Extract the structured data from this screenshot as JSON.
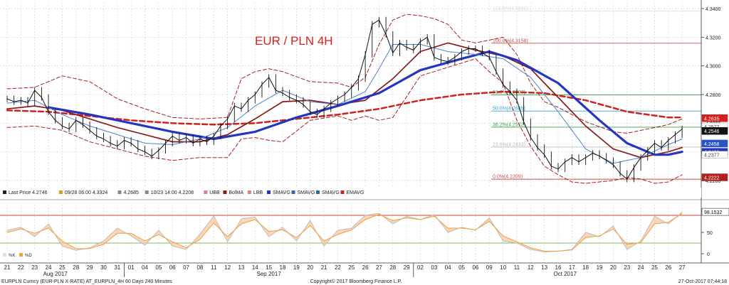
{
  "chart_data": {
    "type": "line",
    "title": "EUR / PLN 4H",
    "price_axis": {
      "ylim": [
        4.216,
        4.344
      ],
      "ticks": [
        4.22,
        4.24,
        4.26,
        4.28,
        4.3,
        4.32,
        4.34
      ],
      "tick_labels": [
        "4.2200",
        "4.2400",
        "4.2600",
        "4.2800",
        "4.3000",
        "4.3200",
        "4.3400"
      ]
    },
    "osc_axis": {
      "ylim": [
        -15,
        115
      ],
      "ticks": [
        0,
        50,
        100
      ],
      "tick_labels": [
        "0",
        "50",
        "100"
      ],
      "levels": [
        {
          "value": 90,
          "color": "#d33c3c"
        },
        {
          "value": 25,
          "color": "#7cbf5a"
        }
      ]
    },
    "dates": [
      "21",
      "22",
      "23",
      "24",
      "25",
      "28",
      "29",
      "30",
      "31",
      "01",
      "04",
      "05",
      "06",
      "07",
      "08",
      "11",
      "12",
      "13",
      "14",
      "15",
      "18",
      "19",
      "20",
      "21",
      "22",
      "25",
      "26",
      "27",
      "28",
      "29",
      "02",
      "03",
      "04",
      "05",
      "06",
      "09",
      "10",
      "11",
      "12",
      "13",
      "16",
      "17",
      "18",
      "19",
      "20",
      "23",
      "24",
      "25",
      "26",
      "27"
    ],
    "months": [
      {
        "label": "Aug 2017",
        "index": 3.5
      },
      {
        "label": "Sep 2017",
        "index": 19
      },
      {
        "label": "Oct 2017",
        "index": 40.5
      }
    ],
    "legend": [
      {
        "label": "Last Price",
        "value": "4.2746",
        "color": "#222222"
      },
      {
        "label": "",
        "value": "09/28 06:00 4.3324",
        "color": "#e29a1c"
      },
      {
        "label": "",
        "value": "4.2685",
        "color": "#888888"
      },
      {
        "label": "",
        "value": "10/23 14:00 4.2208",
        "color": "#888888"
      },
      {
        "label": "UBB",
        "value": "",
        "color": "#e08080"
      },
      {
        "label": "BolMA",
        "value": "",
        "color": "#8b1a1a"
      },
      {
        "label": "LBB",
        "value": "",
        "color": "#e08080"
      },
      {
        "label": "SMAVG",
        "value": "",
        "color": "#2535c0"
      },
      {
        "label": "SMAVG",
        "value": "",
        "color": "#3a5fb0"
      },
      {
        "label": "SMAVG",
        "value": "",
        "color": "#1c6fa8"
      },
      {
        "label": "EMAVG",
        "value": "",
        "color": "#cc2222"
      }
    ],
    "osc_legend": [
      {
        "label": "%K",
        "color": "#e0e0e0"
      },
      {
        "label": "%D",
        "color": "#f0a040"
      }
    ],
    "price_tags": [
      {
        "value": 4.2635,
        "label": "4.2635",
        "bg": "#d42020",
        "fg": "#ffffff"
      },
      {
        "value": 4.2577,
        "label": "4.2577",
        "bg": "#ffffff",
        "fg": "#444444"
      },
      {
        "value": 4.2546,
        "label": "4.2546",
        "bg": "#111111",
        "fg": "#ffffff"
      },
      {
        "value": 4.2458,
        "label": "4.2458",
        "bg": "#2a55c0",
        "fg": "#ffffff"
      },
      {
        "value": 4.24,
        "label": "4.2400",
        "bg": "#2535c0",
        "fg": "#ffffff"
      },
      {
        "value": 4.238,
        "label": "4.2377",
        "bg": "#ffffff",
        "fg": "#444444"
      },
      {
        "value": 4.2222,
        "label": "4.2222",
        "bg": "#b02020",
        "fg": "#ffffff"
      }
    ],
    "osc_tag": {
      "value": 98.1532,
      "label": "98.1532"
    },
    "fib_levels": [
      {
        "label": "123.6%(4.3382)",
        "value": 4.3382,
        "color": "#dddddd"
      },
      {
        "label": "100.0%(4.3158)",
        "value": 4.3158,
        "color": "#c05050"
      },
      {
        "label": "61.8%(4.2797)",
        "value": 4.2797,
        "color": "#3aa04a"
      },
      {
        "label": "50.0%(4.2685)",
        "value": 4.2685,
        "color": "#3aa0d0"
      },
      {
        "label": "38.2%(4.2572)",
        "value": 4.2572,
        "color": "#3aa04a"
      },
      {
        "label": "23.6%(4.2433)",
        "value": 4.2433,
        "color": "#bbbbbb"
      },
      {
        "label": "0.0%(4.2209)",
        "value": 4.2209,
        "color": "#c05050"
      }
    ],
    "series": [
      {
        "name": "Last Price",
        "kind": "price",
        "color": "#111111",
        "x": [
          0,
          0.5,
          1,
          1.5,
          2,
          2.5,
          3,
          3.5,
          4,
          4.5,
          5,
          5.5,
          6,
          6.5,
          7,
          7.5,
          8,
          8.5,
          9,
          9.5,
          10,
          10.5,
          11,
          11.5,
          12,
          12.5,
          13,
          13.5,
          14,
          14.5,
          15,
          15.5,
          16,
          16.5,
          17,
          17.5,
          18,
          18.5,
          19,
          19.5,
          20,
          20.5,
          21,
          21.5,
          22,
          22.5,
          23,
          23.5,
          24,
          24.5,
          25,
          25.5,
          26,
          26.5,
          27,
          27.5,
          28,
          28.5,
          29,
          29.5,
          30,
          30.5,
          31,
          31.5,
          32,
          32.5,
          33,
          33.5,
          34,
          34.5,
          35,
          35.5,
          36,
          36.5,
          37,
          37.5,
          38,
          38.5,
          39,
          39.5,
          40,
          40.5,
          41,
          41.5,
          42,
          42.5,
          43,
          43.5,
          44,
          44.5,
          45,
          45.5,
          46,
          46.5,
          47,
          47.5,
          48,
          48.5,
          49
        ],
        "y": [
          4.277,
          4.275,
          4.276,
          4.274,
          4.283,
          4.278,
          4.268,
          4.262,
          4.258,
          4.256,
          4.262,
          4.259,
          4.255,
          4.251,
          4.249,
          4.246,
          4.244,
          4.248,
          4.246,
          4.242,
          4.24,
          4.237,
          4.241,
          4.246,
          4.251,
          4.248,
          4.25,
          4.246,
          4.249,
          4.247,
          4.251,
          4.258,
          4.263,
          4.272,
          4.27,
          4.276,
          4.28,
          4.287,
          4.292,
          4.283,
          4.281,
          4.278,
          4.276,
          4.273,
          4.268,
          4.266,
          4.27,
          4.274,
          4.277,
          4.28,
          4.285,
          4.291,
          4.308,
          4.329,
          4.332,
          4.322,
          4.309,
          4.316,
          4.313,
          4.311,
          4.317,
          4.32,
          4.306,
          4.304,
          4.303,
          4.306,
          4.31,
          4.312,
          4.312,
          4.309,
          4.306,
          4.296,
          4.287,
          4.282,
          4.276,
          4.261,
          4.25,
          4.243,
          4.238,
          4.23,
          4.228,
          4.233,
          4.236,
          4.233,
          4.236,
          4.239,
          4.237,
          4.234,
          4.231,
          4.225,
          4.221,
          4.229,
          4.236,
          4.241,
          4.246,
          4.243,
          4.248,
          4.252,
          4.256
        ]
      },
      {
        "name": "BolMA",
        "kind": "ma",
        "color": "#8b1a1a",
        "width": 1.7,
        "x": [
          0,
          2,
          4,
          6,
          8,
          10,
          12,
          14,
          16,
          18,
          20,
          22,
          24,
          26,
          28,
          30,
          32,
          34,
          36,
          38,
          40,
          42,
          44,
          46,
          48,
          49
        ],
        "y": [
          4.27,
          4.272,
          4.269,
          4.263,
          4.257,
          4.252,
          4.247,
          4.247,
          4.252,
          4.263,
          4.275,
          4.276,
          4.273,
          4.276,
          4.291,
          4.31,
          4.316,
          4.311,
          4.307,
          4.298,
          4.278,
          4.258,
          4.242,
          4.236,
          4.24,
          4.243
        ]
      },
      {
        "name": "SMAVG",
        "kind": "ma",
        "color": "#2535c0",
        "width": 3.2,
        "x": [
          3,
          6,
          9,
          12,
          15,
          18,
          21,
          24,
          27,
          30,
          33,
          35,
          37,
          40,
          43,
          45,
          47,
          48,
          49
        ],
        "y": [
          4.271,
          4.266,
          4.26,
          4.254,
          4.249,
          4.254,
          4.264,
          4.272,
          4.281,
          4.297,
          4.305,
          4.31,
          4.304,
          4.288,
          4.262,
          4.246,
          4.238,
          4.238,
          4.24
        ]
      },
      {
        "name": "EMAVG",
        "kind": "ema",
        "color": "#cc2222",
        "width": 2.5,
        "x": [
          0,
          3,
          6,
          9,
          12,
          15,
          18,
          21,
          24,
          27,
          30,
          33,
          36,
          39,
          42,
          45,
          48,
          49
        ],
        "y": [
          4.269,
          4.268,
          4.265,
          4.262,
          4.26,
          4.259,
          4.26,
          4.263,
          4.266,
          4.27,
          4.276,
          4.28,
          4.282,
          4.281,
          4.276,
          4.268,
          4.264,
          4.264
        ]
      },
      {
        "name": "UBB",
        "kind": "band",
        "color": "#a82020",
        "width": 1,
        "x": [
          0,
          2,
          4,
          6,
          8,
          10,
          12,
          14,
          16,
          17,
          18,
          19,
          20,
          22,
          24,
          25,
          26,
          27,
          28,
          29,
          30,
          31,
          32,
          33,
          34,
          35,
          36,
          37,
          38,
          39,
          40,
          42,
          44,
          45,
          46,
          47,
          48,
          49
        ],
        "y": [
          4.284,
          4.285,
          4.293,
          4.289,
          4.277,
          4.27,
          4.264,
          4.263,
          4.264,
          4.291,
          4.296,
          4.298,
          4.296,
          4.289,
          4.288,
          4.285,
          4.292,
          4.315,
          4.332,
          4.336,
          4.335,
          4.333,
          4.329,
          4.318,
          4.316,
          4.318,
          4.32,
          4.308,
          4.288,
          4.275,
          4.271,
          4.261,
          4.254,
          4.253,
          4.255,
          4.257,
          4.259,
          4.263
        ]
      },
      {
        "name": "LBB",
        "kind": "band",
        "color": "#a82020",
        "width": 1,
        "x": [
          0,
          2,
          4,
          6,
          8,
          10,
          12,
          14,
          16,
          17,
          18,
          19,
          20,
          22,
          24,
          25,
          26,
          27,
          28,
          30,
          32,
          33,
          34,
          35,
          36,
          37,
          38,
          39,
          40,
          41,
          42,
          44,
          45,
          46,
          47,
          48,
          49
        ],
        "y": [
          4.257,
          4.258,
          4.255,
          4.247,
          4.242,
          4.237,
          4.234,
          4.236,
          4.236,
          4.249,
          4.25,
          4.248,
          4.247,
          4.262,
          4.265,
          4.262,
          4.265,
          4.262,
          4.264,
          4.293,
          4.299,
          4.302,
          4.305,
          4.296,
          4.288,
          4.262,
          4.244,
          4.23,
          4.224,
          4.219,
          4.218,
          4.22,
          4.222,
          4.221,
          4.218,
          4.219,
          4.224
        ]
      },
      {
        "name": "SMAVG",
        "kind": "ma",
        "color": "#4f83c8",
        "width": 1,
        "x": [
          0,
          2,
          4,
          6,
          8,
          10,
          12,
          14,
          16,
          18,
          20,
          22,
          24,
          26,
          27,
          28,
          30,
          32,
          34,
          36,
          38,
          40,
          42,
          44,
          46,
          48,
          49
        ],
        "y": [
          4.274,
          4.276,
          4.266,
          4.258,
          4.252,
          4.246,
          4.245,
          4.249,
          4.257,
          4.272,
          4.283,
          4.275,
          4.273,
          4.282,
          4.298,
          4.315,
          4.315,
          4.31,
          4.308,
          4.305,
          4.292,
          4.268,
          4.242,
          4.232,
          4.236,
          4.245,
          4.249
        ]
      },
      {
        "name": "%K",
        "kind": "osc",
        "color": "#bdbdbd",
        "width": 1,
        "x": [
          0,
          1,
          2,
          3,
          4,
          5,
          6,
          7,
          8,
          9,
          10,
          11,
          12,
          13,
          14,
          15,
          16,
          17,
          18,
          19,
          20,
          21,
          22,
          23,
          24,
          25,
          26,
          27,
          28,
          29,
          30,
          31,
          32,
          33,
          34,
          35,
          36,
          37,
          38,
          39,
          40,
          41,
          42,
          43,
          44,
          45,
          46,
          47,
          48,
          49
        ],
        "y": [
          55,
          62,
          40,
          70,
          18,
          8,
          14,
          30,
          60,
          42,
          20,
          55,
          18,
          10,
          46,
          88,
          28,
          82,
          86,
          40,
          62,
          30,
          78,
          18,
          55,
          60,
          90,
          95,
          70,
          88,
          80,
          92,
          50,
          62,
          55,
          84,
          30,
          25,
          10,
          4,
          6,
          10,
          50,
          40,
          65,
          10,
          30,
          88,
          70,
          98
        ]
      },
      {
        "name": "%D",
        "kind": "osc",
        "color": "#f0a040",
        "width": 1,
        "x": [
          0,
          1,
          2,
          3,
          4,
          5,
          6,
          7,
          8,
          9,
          10,
          11,
          12,
          13,
          14,
          15,
          16,
          17,
          18,
          19,
          20,
          21,
          22,
          23,
          24,
          25,
          26,
          27,
          28,
          29,
          30,
          31,
          32,
          33,
          34,
          35,
          36,
          37,
          38,
          39,
          40,
          41,
          42,
          43,
          44,
          45,
          46,
          47,
          48,
          49
        ],
        "y": [
          50,
          58,
          48,
          60,
          30,
          12,
          12,
          22,
          48,
          48,
          30,
          45,
          28,
          14,
          34,
          72,
          40,
          70,
          80,
          52,
          56,
          38,
          66,
          30,
          45,
          56,
          80,
          92,
          78,
          84,
          80,
          88,
          60,
          60,
          56,
          76,
          42,
          28,
          14,
          6,
          6,
          9,
          38,
          42,
          58,
          22,
          26,
          70,
          74,
          94
        ]
      }
    ],
    "footer": {
      "left": "EURPLN Curncy (EUR-PLN X-RATE) AT_EURPLN_4H 60 Days 240 Minutes",
      "center": "Copyright© 2017 Bloomberg Finance L.P.",
      "right": "27-Oct-2017 07:44:18"
    }
  }
}
